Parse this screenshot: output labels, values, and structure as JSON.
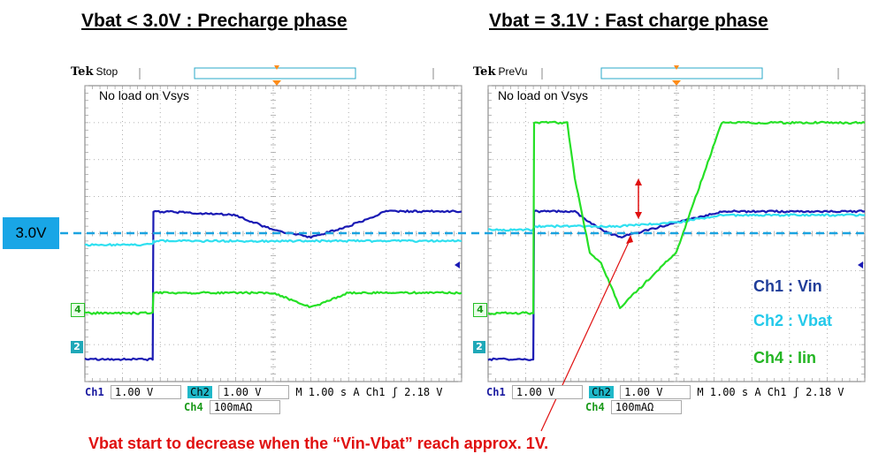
{
  "titles": {
    "left": "Vbat < 3.0V : Precharge phase",
    "right": "Vbat = 3.1V : Fast charge phase"
  },
  "scopes": [
    {
      "brand": "Tek",
      "status": "Stop",
      "annotation": "No load on Vsys",
      "footer": {
        "ch1_label": "Ch1",
        "ch1_scale": "1.00 V",
        "ch2_label": "Ch2",
        "ch2_scale": "1.00 V",
        "timebase": "M 1.00 s",
        "trigger": "A  Ch1  ʃ  2.18 V",
        "ch4_label": "Ch4",
        "ch4_scale": "100mAΩ"
      }
    },
    {
      "brand": "Tek",
      "status": "PreVu",
      "annotation": "No load on Vsys",
      "footer": {
        "ch1_label": "Ch1",
        "ch1_scale": "1.00 V",
        "ch2_label": "Ch2",
        "ch2_scale": "1.00 V",
        "timebase": "M 1.00 s",
        "trigger": "A  Ch1  ʃ  2.18 V",
        "ch4_label": "Ch4",
        "ch4_scale": "100mAΩ"
      }
    }
  ],
  "reference_label": "3.0V",
  "ch_markers": {
    "ch4": "4",
    "ch2": "2"
  },
  "legend": [
    {
      "text": "Ch1 : Vin",
      "color": "#1f3d99"
    },
    {
      "text": "Ch2 : Vbat",
      "color": "#23c9ea"
    },
    {
      "text": "Ch4 : Iin",
      "color": "#23b523"
    }
  ],
  "note": "Vbat start to decrease when the “Vin-Vbat” reach approx. 1V.",
  "colors": {
    "ch1": "#1a1ab4",
    "ch2": "#2fe0f0",
    "ch4": "#26e026",
    "reference": "#1aa3e0",
    "annotation": "#e01010",
    "grid": "#9a9a9a"
  },
  "chart_data": [
    {
      "type": "line",
      "x": [
        0,
        1.8,
        1.82,
        2,
        4,
        5,
        6,
        7,
        8,
        10
      ],
      "series": [
        {
          "name": "Ch1",
          "values": [
            -3.4,
            -3.4,
            0.6,
            0.6,
            0.5,
            0.1,
            -0.1,
            0.2,
            0.6,
            0.6
          ]
        },
        {
          "name": "Ch2",
          "values": [
            -0.3,
            -0.3,
            -0.2,
            -0.2,
            -0.2,
            -0.2,
            -0.2,
            -0.2,
            -0.2,
            -0.2
          ]
        },
        {
          "name": "Ch4",
          "values": [
            -2.15,
            -2.15,
            -1.6,
            -1.6,
            -1.6,
            -1.6,
            -2.0,
            -1.6,
            -1.6,
            -1.6
          ]
        }
      ]
    },
    {
      "type": "line",
      "x": [
        0,
        1.2,
        1.22,
        2.1,
        2.3,
        2.7,
        3.0,
        3.5,
        5,
        6.2,
        7,
        10
      ],
      "series": [
        {
          "name": "Ch1",
          "values": [
            -3.4,
            -3.4,
            0.6,
            0.6,
            0.6,
            0.3,
            0.1,
            -0.1,
            0.3,
            0.6,
            0.6,
            0.6
          ]
        },
        {
          "name": "Ch2",
          "values": [
            0.1,
            0.1,
            0.2,
            0.2,
            0.2,
            0.2,
            0.2,
            0.2,
            0.3,
            0.5,
            0.5,
            0.5
          ]
        },
        {
          "name": "Ch4",
          "values": [
            -2.15,
            -2.15,
            3.0,
            3.0,
            1.5,
            -0.5,
            -0.8,
            -2.0,
            -0.5,
            3.0,
            3.0,
            3.0
          ]
        }
      ]
    }
  ]
}
